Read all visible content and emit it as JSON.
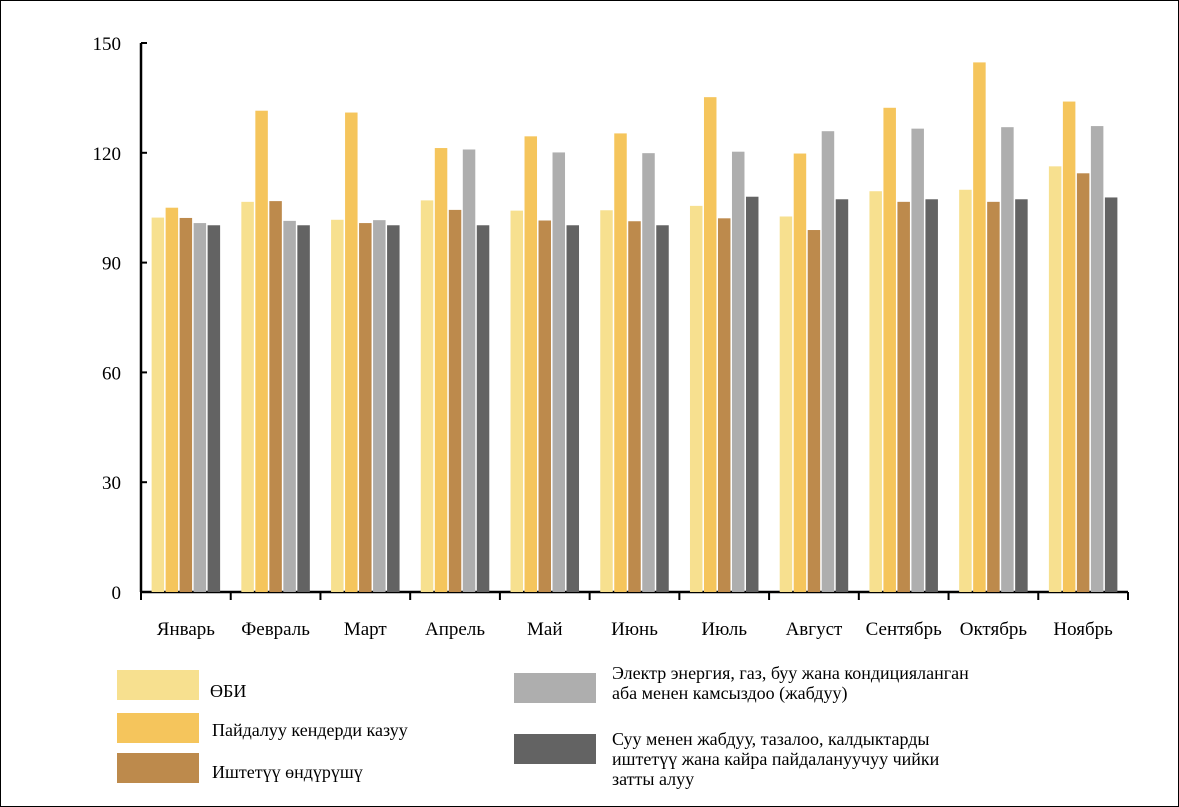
{
  "chart_data": {
    "type": "bar",
    "title": "",
    "xlabel": "",
    "ylabel": "",
    "ylim": [
      0,
      150
    ],
    "yticks": [
      0,
      30,
      60,
      90,
      120,
      150
    ],
    "grid": false,
    "legend_position": "bottom",
    "categories": [
      "Январь",
      "Февраль",
      "Март",
      "Апрель",
      "Май",
      "Июнь",
      "Июль",
      "Август",
      "Сентябрь",
      "Октябрь",
      "Ноябрь"
    ],
    "series": [
      {
        "name": "ӨБИ",
        "color": "#f7e08f",
        "values": [
          102.3,
          106.6,
          101.7,
          107.0,
          104.2,
          104.3,
          105.5,
          102.6,
          109.5,
          109.9,
          116.3
        ]
      },
      {
        "name": "Пайдалуу кендерди казуу",
        "color": "#f5c55c",
        "values": [
          105.0,
          131.5,
          131.0,
          121.3,
          124.5,
          125.3,
          135.2,
          119.8,
          132.3,
          144.7,
          134.0
        ]
      },
      {
        "name": "Иштетүү өндүрүшү",
        "color": "#bd8a4c",
        "values": [
          102.2,
          106.8,
          100.8,
          104.4,
          101.5,
          101.3,
          102.1,
          98.9,
          106.6,
          106.6,
          114.4
        ]
      },
      {
        "name": "Электр энергия, газ, буу жана кондицияланган аба менен камсыздоо (жабдуу)",
        "color": "#aeaeae",
        "values": [
          100.8,
          101.4,
          101.6,
          120.9,
          120.1,
          119.9,
          120.3,
          125.9,
          126.6,
          127.0,
          127.3
        ]
      },
      {
        "name": "Суу менен жабдуу, тазалоо, калдыктарды иштетүү жана кайра пайдалануучуу чийки затты алуу",
        "color": "#636363",
        "values": [
          100.2,
          100.2,
          100.2,
          100.2,
          100.2,
          100.2,
          108.0,
          107.3,
          107.3,
          107.3,
          107.8
        ]
      }
    ]
  },
  "legend": [
    {
      "lines": [
        "ӨБИ"
      ],
      "color": "#f7e08f"
    },
    {
      "lines": [
        "Пайдалуу кендерди казуу"
      ],
      "color": "#f5c55c"
    },
    {
      "lines": [
        "Иштетүү өндүрүшү"
      ],
      "color": "#bd8a4c"
    },
    {
      "lines": [
        "Электр энергия, газ, буу жана кондицияланган",
        "аба менен камсыздоо (жабдуу)"
      ],
      "color": "#aeaeae"
    },
    {
      "lines": [
        " Суу менен жабдуу, тазалоо, калдыктарды",
        "иштетүү жана кайра пайдалануучуу чийки",
        "затты алуу"
      ],
      "color": "#636363"
    }
  ]
}
